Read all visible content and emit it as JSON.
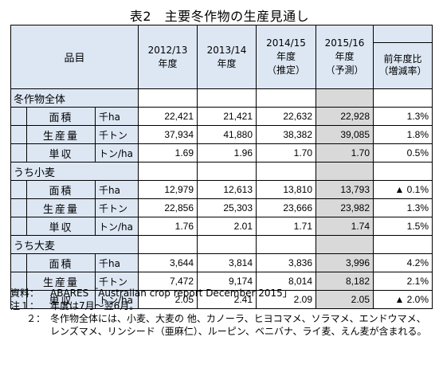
{
  "title": "表2　主要冬作物の生産見通し",
  "header": {
    "item": "品目",
    "years": [
      {
        "line1": "2012/13",
        "line2": "年度",
        "line3": ""
      },
      {
        "line1": "2013/14",
        "line2": "年度",
        "line3": ""
      },
      {
        "line1": "2014/15",
        "line2": "年度",
        "line3": "（推定）"
      },
      {
        "line1": "2015/16",
        "line2": "年度",
        "line3": "（予測）"
      }
    ],
    "change_line1": "前年度比",
    "change_line2": "（増減率）"
  },
  "sections": [
    {
      "label": "冬作物全体",
      "rows": [
        {
          "name": "面積",
          "unit": "千ha",
          "values": [
            "22,421",
            "21,421",
            "22,632",
            "22,928"
          ],
          "change": "1.3%"
        },
        {
          "name": "生産量",
          "unit": "千トン",
          "values": [
            "37,934",
            "41,880",
            "38,382",
            "39,085"
          ],
          "change": "1.8%"
        },
        {
          "name": "単収",
          "unit": "トン/ha",
          "values": [
            "1.69",
            "1.96",
            "1.70",
            "1.70"
          ],
          "change": "0.5%"
        }
      ]
    },
    {
      "label": "うち小麦",
      "rows": [
        {
          "name": "面積",
          "unit": "千ha",
          "values": [
            "12,979",
            "12,613",
            "13,810",
            "13,793"
          ],
          "change": "▲ 0.1%"
        },
        {
          "name": "生産量",
          "unit": "千トン",
          "values": [
            "22,856",
            "25,303",
            "23,666",
            "23,982"
          ],
          "change": "1.3%"
        },
        {
          "name": "単収",
          "unit": "トン/ha",
          "values": [
            "1.76",
            "2.01",
            "1.71",
            "1.74"
          ],
          "change": "1.5%"
        }
      ]
    },
    {
      "label": "うち大麦",
      "rows": [
        {
          "name": "面積",
          "unit": "千ha",
          "values": [
            "3,644",
            "3,814",
            "3,836",
            "3,996"
          ],
          "change": "4.2%"
        },
        {
          "name": "生産量",
          "unit": "千トン",
          "values": [
            "7,472",
            "9,174",
            "8,014",
            "8,182"
          ],
          "change": "2.1%"
        },
        {
          "name": "単収",
          "unit": "トン/ha",
          "values": [
            "2.05",
            "2.41",
            "2.09",
            "2.05"
          ],
          "change": "▲ 2.0%"
        }
      ]
    }
  ],
  "notes": {
    "source_key": "資料：",
    "source_text": "ABARES「Australian crop report December 2015」",
    "note1_key": "注１：",
    "note1_text": "年度は7月～翌6月。",
    "note2_key": "２：",
    "note2_text": "冬作物全体には、小麦、大麦の 他、カノーラ、ヒヨコマメ、ソラマメ、エンドウマメ、レンズマメ、リンシード（亜麻仁）、ルーピン、ベニバナ、ライ麦、えん麦が含まれる。"
  }
}
